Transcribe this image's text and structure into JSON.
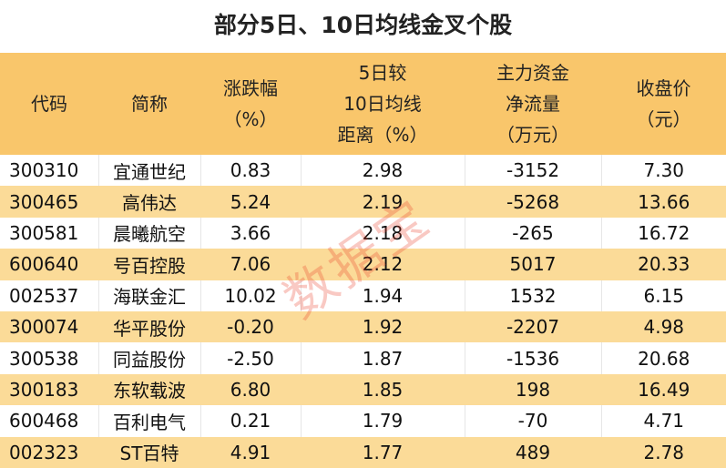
{
  "title": "部分5日、10日均线金叉个股",
  "watermark": "数据宝",
  "table": {
    "headers": [
      [
        "代码"
      ],
      [
        "简称"
      ],
      [
        "涨跌幅",
        "（%）"
      ],
      [
        "5日较",
        "10日均线",
        "距离（%）"
      ],
      [
        "主力资金",
        "净流量",
        "（万元）"
      ],
      [
        "收盘价",
        "（元）"
      ]
    ],
    "rows": [
      [
        "300310",
        "宜通世纪",
        "0.83",
        "2.98",
        "-3152",
        "7.30"
      ],
      [
        "300465",
        "高伟达",
        "5.24",
        "2.19",
        "-5268",
        "13.66"
      ],
      [
        "300581",
        "晨曦航空",
        "3.66",
        "2.18",
        "-265",
        "16.72"
      ],
      [
        "600640",
        "号百控股",
        "7.06",
        "2.12",
        "5017",
        "20.33"
      ],
      [
        "002537",
        "海联金汇",
        "10.02",
        "1.94",
        "1532",
        "6.15"
      ],
      [
        "300074",
        "华平股份",
        "-0.20",
        "1.92",
        "-2207",
        "4.98"
      ],
      [
        "300538",
        "同益股份",
        "-2.50",
        "1.87",
        "-1536",
        "20.68"
      ],
      [
        "300183",
        "东软载波",
        "6.80",
        "1.85",
        "198",
        "16.49"
      ],
      [
        "600468",
        "百利电气",
        "0.21",
        "1.79",
        "-70",
        "4.71"
      ],
      [
        "002323",
        "ST百特",
        "4.91",
        "1.77",
        "489",
        "2.78"
      ]
    ]
  }
}
